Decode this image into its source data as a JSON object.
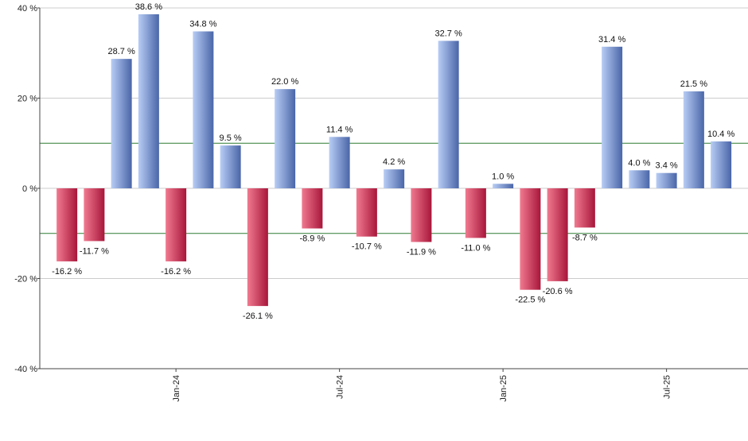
{
  "chart_data": {
    "type": "bar",
    "title": "",
    "xlabel": "",
    "ylabel": "",
    "ylim": [
      -40,
      40
    ],
    "y_ticks": [
      {
        "value": 40,
        "label": "40 %"
      },
      {
        "value": 20,
        "label": "20 %"
      },
      {
        "value": 0,
        "label": "0 %"
      },
      {
        "value": -20,
        "label": "-20 %"
      },
      {
        "value": -40,
        "label": "-40 %"
      }
    ],
    "reference_lines": [
      10,
      -10
    ],
    "x_ticks": [
      {
        "index": 4.5,
        "label": "Jan-24"
      },
      {
        "index": 10.5,
        "label": "Jul-24"
      },
      {
        "index": 16.5,
        "label": "Jan-25"
      },
      {
        "index": 22.5,
        "label": "Jul-25"
      }
    ],
    "values": [
      -16.2,
      -11.7,
      28.7,
      38.6,
      -16.2,
      34.8,
      9.5,
      -26.1,
      22.0,
      -8.9,
      11.4,
      -10.7,
      4.2,
      -11.9,
      32.7,
      -11.0,
      1.0,
      -22.5,
      -20.6,
      -8.7,
      31.4,
      4.0,
      3.4,
      21.5,
      10.4
    ],
    "data_labels": [
      "-16.2 %",
      "-11.7 %",
      "28.7 %",
      "38.6 %",
      "-16.2 %",
      "34.8 %",
      "9.5 %",
      "-26.1 %",
      "22.0 %",
      "-8.9 %",
      "11.4 %",
      "-10.7 %",
      "4.2 %",
      "-11.9 %",
      "32.7 %",
      "-11.0 %",
      "1.0 %",
      "-22.5 %",
      "-20.6 %",
      "-8.7 %",
      "31.4 %",
      "4.0 %",
      "3.4 %",
      "21.5 %",
      "10.4 %"
    ],
    "grid": true,
    "legend": "none",
    "colors": {
      "positive_light": "#b8cdf5",
      "positive_dark": "#4a66a8",
      "negative_light": "#f07a90",
      "negative_dark": "#a8163a",
      "reference_line": "#2e7d32",
      "grid": "#cccccc"
    }
  }
}
